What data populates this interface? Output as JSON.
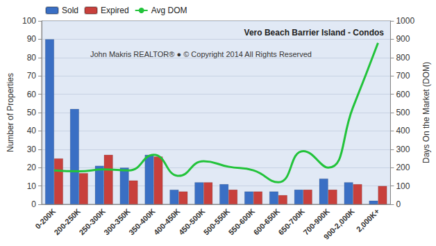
{
  "chart_data": {
    "type": "bar",
    "title": "Vero Beach Barrier Island - Condos",
    "annotations": [
      "John Makris REALTOR® ● © Copyright 2014 All Rights Reserved"
    ],
    "y_label": "Number of Properties",
    "y2_label": "Days On the Market (DOM)",
    "categories": [
      "0-200K",
      "200-250K",
      "250-300K",
      "300-350K",
      "350-400K",
      "400-450K",
      "450-500K",
      "500-550K",
      "550-600K",
      "600-650K",
      "650-700K",
      "700-900K",
      "900-2,000K",
      "2,000K+"
    ],
    "series": [
      {
        "name": "Sold",
        "type": "bar",
        "color": "#3a6fc4",
        "values": [
          90,
          52,
          21,
          20,
          27,
          8,
          12,
          11,
          7,
          7,
          8,
          14,
          12,
          2
        ]
      },
      {
        "name": "Expired",
        "type": "bar",
        "color": "#c8403c",
        "values": [
          25,
          17,
          27,
          13,
          26,
          7,
          12,
          8,
          7,
          5,
          8,
          8,
          11,
          10
        ]
      },
      {
        "name": "Avg DOM",
        "type": "line",
        "axis": "y2",
        "color": "#22c33a",
        "marker": "none",
        "line_style": "solid",
        "values": [
          185,
          180,
          190,
          185,
          270,
          155,
          235,
          205,
          185,
          120,
          290,
          200,
          530,
          880
        ]
      }
    ],
    "ylim": [
      0,
      100
    ],
    "yticks": [
      0,
      10,
      20,
      30,
      40,
      50,
      60,
      70,
      80,
      90,
      100
    ],
    "y2lim": [
      0,
      1000
    ],
    "y2ticks": [
      0,
      100,
      200,
      300,
      400,
      500,
      600,
      700,
      800,
      900,
      1000
    ],
    "grid": true,
    "legend": "upper left"
  }
}
